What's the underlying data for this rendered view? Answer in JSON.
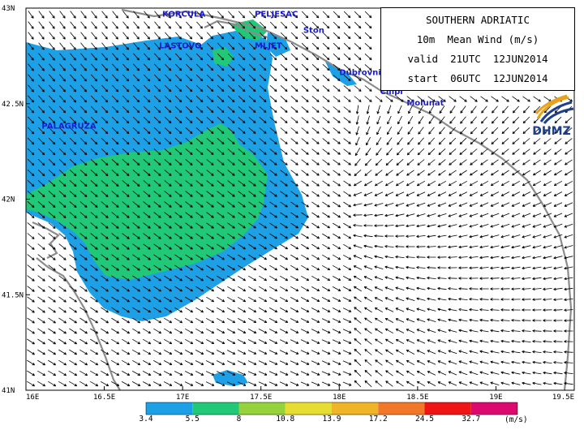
{
  "header": {
    "region": "SOUTHERN ADRIATIC",
    "field": "10m  Mean Wind (m/s)",
    "valid": "valid  21UTC  12JUN2014",
    "start": "start  06UTC  12JUN2014"
  },
  "logo": {
    "text": "DHMZ",
    "icon": "dhmz-logo-icon",
    "colors": [
      "#e8a21c",
      "#1e3f8c"
    ]
  },
  "axes": {
    "x_ticks": [
      "16E",
      "16.5E",
      "17E",
      "17.5E",
      "18E",
      "18.5E",
      "19E",
      "19.5E"
    ],
    "x_values": [
      16,
      16.5,
      17,
      17.5,
      18,
      18.5,
      19,
      19.5
    ],
    "y_ticks": [
      "43N",
      "42.5N",
      "42N",
      "41.5N",
      "41N"
    ],
    "y_values": [
      43,
      42.5,
      42,
      41.5,
      41
    ],
    "lon_range": [
      16,
      19.5
    ],
    "lat_range": [
      41,
      43
    ]
  },
  "places": [
    {
      "name": "KORCULA",
      "lon": 16.87,
      "lat": 42.955
    },
    {
      "name": "PELJESAC",
      "lon": 17.46,
      "lat": 42.955
    },
    {
      "name": "Ston",
      "lon": 17.77,
      "lat": 42.87
    },
    {
      "name": "LASTOVO",
      "lon": 16.85,
      "lat": 42.79
    },
    {
      "name": "MLJET",
      "lon": 17.46,
      "lat": 42.79
    },
    {
      "name": "Dubrovnik",
      "lon": 18.0,
      "lat": 42.65
    },
    {
      "name": "Cilipi",
      "lon": 18.26,
      "lat": 42.55
    },
    {
      "name": "Molunat",
      "lon": 18.43,
      "lat": 42.49
    },
    {
      "name": "PALAGRUZA",
      "lon": 16.1,
      "lat": 42.37
    }
  ],
  "legend": {
    "unit": "(m/s)",
    "thresholds": [
      "3.4",
      "5.5",
      "8",
      "10.8",
      "13.9",
      "17.2",
      "24.5",
      "32.7"
    ],
    "colors": [
      "#1ea0e6",
      "#20c878",
      "#96d23c",
      "#e6dc32",
      "#f0b428",
      "#f07828",
      "#f01414",
      "#dc0a6e"
    ]
  },
  "colors": {
    "sea": "#ffffff",
    "land": "#ffffff",
    "coast": "#8c8c8c",
    "wind_3_4": "#1ea0e6",
    "wind_5_5": "#20c878",
    "arrows": "#000000",
    "place_labels": "#1a1acd"
  }
}
